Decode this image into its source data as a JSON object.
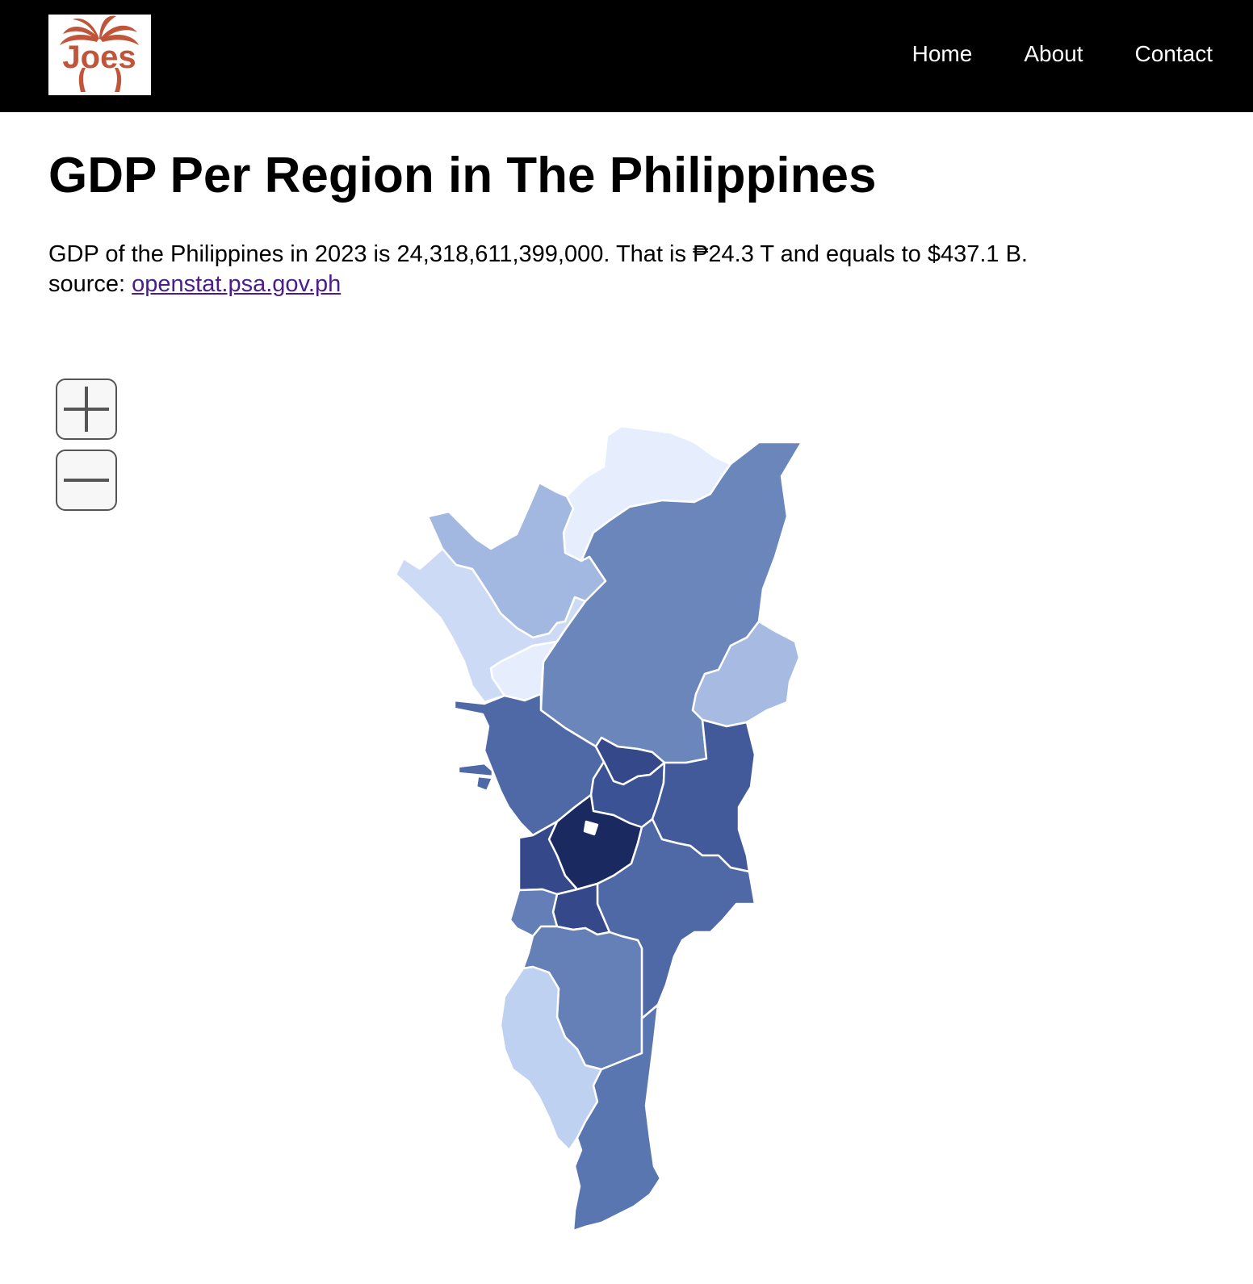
{
  "header": {
    "logo_text": "Joes",
    "nav": [
      {
        "label": "Home"
      },
      {
        "label": "About"
      },
      {
        "label": "Contact"
      }
    ]
  },
  "page": {
    "title": "GDP Per Region in The Philippines",
    "description": "GDP of the Philippines in 2023 is 24,318,611,399,000. That is ₱24.3 T and equals to $437.1 B.",
    "source_prefix": "source: ",
    "source_link": "openstat.psa.gov.ph"
  },
  "map": {
    "zoom_in_icon": "plus-icon",
    "zoom_out_icon": "minus-icon",
    "colors": {
      "brand_logo": "#c0553a",
      "link": "#4b1c8c",
      "scale_lightest": "#e6eefd",
      "scale_darkest": "#1a2a60"
    }
  }
}
